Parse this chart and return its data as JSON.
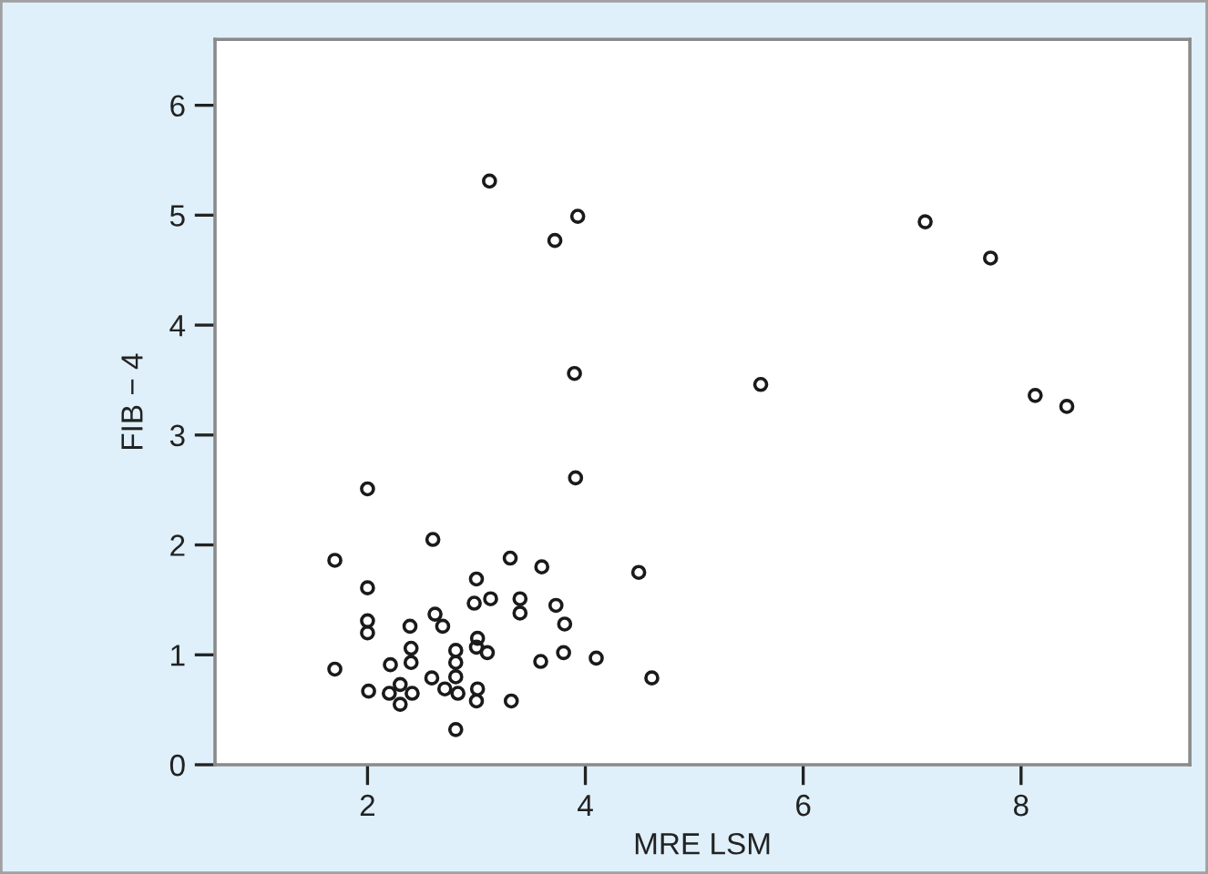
{
  "chart_data": {
    "type": "scatter",
    "xlabel": "MRE LSM",
    "ylabel": "FIB − 4",
    "xlim": [
      0.6,
      9.55
    ],
    "ylim": [
      0,
      6.6
    ],
    "xticks": [
      2,
      4,
      6,
      8
    ],
    "yticks": [
      0,
      1,
      2,
      3,
      4,
      5,
      6
    ],
    "grid": false,
    "marker": "circle",
    "series": [
      {
        "color": "#1a1a1a",
        "x": [
          3.12,
          3.93,
          3.72,
          7.12,
          7.72,
          3.9,
          5.61,
          8.13,
          8.42,
          3.91,
          2.0,
          2.6,
          1.7,
          3.31,
          3.6,
          4.49,
          3.0,
          2.0,
          2.98,
          3.13,
          3.4,
          3.4,
          3.73,
          3.81,
          2.0,
          2.0,
          2.39,
          2.62,
          2.69,
          2.4,
          2.4,
          2.81,
          2.81,
          2.81,
          3.01,
          3.0,
          3.1,
          3.59,
          3.8,
          4.1,
          4.61,
          1.7,
          2.21,
          2.01,
          2.2,
          2.3,
          2.3,
          2.41,
          2.59,
          2.71,
          2.83,
          3.01,
          3.0,
          3.32,
          2.81
        ],
        "values": [
          5.31,
          4.99,
          4.77,
          4.94,
          4.61,
          3.56,
          3.46,
          3.36,
          3.26,
          2.61,
          2.51,
          2.05,
          1.86,
          1.88,
          1.8,
          1.75,
          1.69,
          1.61,
          1.47,
          1.51,
          1.51,
          1.38,
          1.45,
          1.28,
          1.31,
          1.2,
          1.26,
          1.37,
          1.26,
          1.06,
          0.93,
          1.04,
          0.93,
          0.8,
          1.15,
          1.07,
          1.02,
          0.94,
          1.02,
          0.97,
          0.79,
          0.87,
          0.91,
          0.67,
          0.65,
          0.73,
          0.55,
          0.65,
          0.79,
          0.69,
          0.65,
          0.69,
          0.58,
          0.58,
          0.32
        ]
      }
    ]
  }
}
